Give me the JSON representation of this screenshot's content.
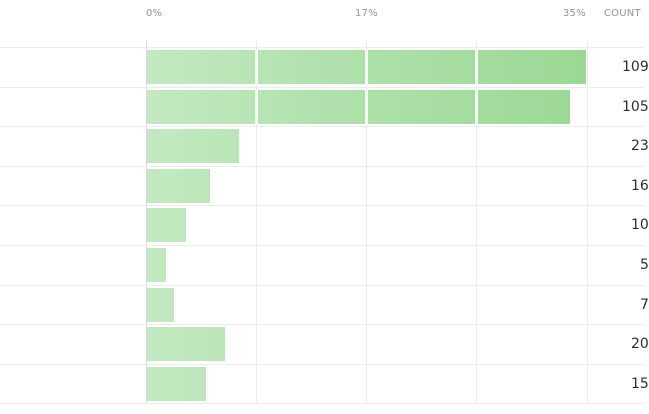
{
  "table": {
    "axis_ticks": [
      "0%",
      "17%",
      "35%"
    ],
    "count_header": "COUNT",
    "rows": [
      {
        "percent": 35.0,
        "count": "109"
      },
      {
        "percent": 33.7,
        "count": "105"
      },
      {
        "percent": 7.4,
        "count": "23"
      },
      {
        "percent": 5.1,
        "count": "16"
      },
      {
        "percent": 3.2,
        "count": "10"
      },
      {
        "percent": 1.6,
        "count": "5"
      },
      {
        "percent": 2.2,
        "count": "7"
      },
      {
        "percent": 6.3,
        "count": "20"
      },
      {
        "percent": 4.8,
        "count": "15"
      }
    ]
  },
  "colors": {
    "bar_light": "#c4e9c2",
    "bar_dark": "#9bd894",
    "grid": "#ececec",
    "axis": "#d6d9dd",
    "header_text": "#8f959e",
    "count_text": "#2b2f33"
  }
}
